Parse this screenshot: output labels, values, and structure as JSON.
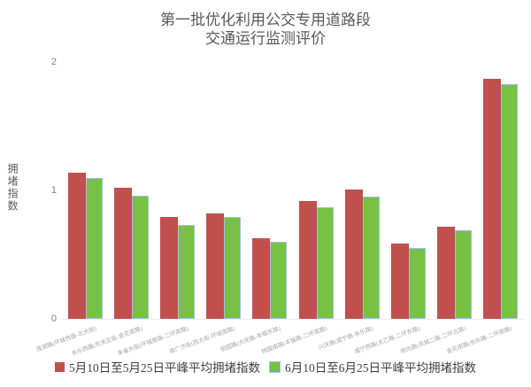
{
  "title": {
    "line1": "第一批优化利用公交专用道路段",
    "line2": "交通运行监测评价"
  },
  "y_axis": {
    "title": "拥堵指数",
    "ticks": [
      0,
      1,
      2
    ]
  },
  "legend": [
    {
      "label": "5月10日至5月25日平峰平均拥堵指数",
      "color": "#c0504d"
    },
    {
      "label": "6月10日至6月25日平峰平均拥堵指数",
      "color": "#77c143"
    }
  ],
  "colors": {
    "series1": "#c0504d",
    "series2": "#77c143",
    "series2_border": "#9cc2e5",
    "title_text": "#595959",
    "tick_text": "#7f7f7f",
    "category_text": "#a3a3a3",
    "legend_text": "#404040"
  },
  "chart_data": {
    "type": "bar",
    "title": "第一批优化利用公交专用道路段 交通运行监测评价",
    "ylabel": "拥堵指数",
    "ylim": [
      0,
      2
    ],
    "grid": false,
    "legend_position": "bottom",
    "categories": [
      "莲湖路(环城西路-北大街)",
      "长乐西路(东关正街-金花南路)",
      "朱雀大街(环城南路-二环南路)",
      "南广济街(西大街-环城南路)",
      "桃园路(大庆路-丰镐东路)",
      "桃园南路(丰镐路-二环南路)",
      "兴庆路(咸宁路-长乐路)",
      "咸宁西路(太乙路-二环东路)",
      "明光路(凤城二路-二环北路)",
      "金花南路(长乐路-二环南路)"
    ],
    "series": [
      {
        "name": "5月10日至5月25日平峰平均拥堵指数",
        "color": "#c0504d",
        "values": [
          1.14,
          1.02,
          0.79,
          0.82,
          0.63,
          0.92,
          1.01,
          0.59,
          0.72,
          1.87
        ]
      },
      {
        "name": "6月10日至6月25日平峰平均拥堵指数",
        "color": "#77c143",
        "values": [
          1.1,
          0.96,
          0.73,
          0.79,
          0.6,
          0.87,
          0.95,
          0.55,
          0.69,
          1.83
        ]
      }
    ]
  }
}
